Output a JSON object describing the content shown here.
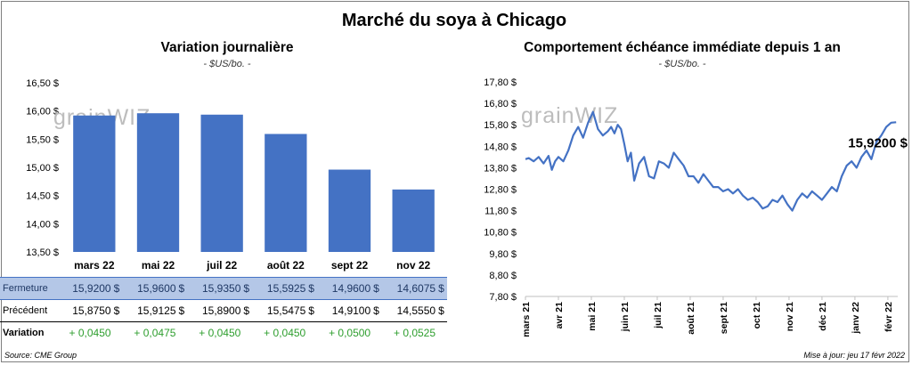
{
  "title": "Marché du soya à Chicago",
  "watermark": "grainWIZ",
  "source": "Source: CME Group",
  "updated": "Mise à jour: jeu 17 févr 2022",
  "chart_data": [
    {
      "type": "bar",
      "title": "Variation journalière",
      "subtitle": "- $US/bo. -",
      "categories": [
        "mars 22",
        "mai 22",
        "juil 22",
        "août 22",
        "sept 22",
        "nov 22"
      ],
      "values": [
        15.92,
        15.96,
        15.935,
        15.5925,
        14.96,
        14.6075
      ],
      "ylim": [
        13.5,
        16.5
      ],
      "yticks": [
        "13,50 $",
        "14,00 $",
        "14,50 $",
        "15,00 $",
        "15,50 $",
        "16,00 $",
        "16,50 $"
      ],
      "color": "#4472c4",
      "table": {
        "fermeture_label": "Fermeture",
        "fermeture": [
          "15,9200",
          "15,9600",
          "15,9350",
          "15,5925",
          "14,9600",
          "14,6075"
        ],
        "precedent_label": "Précédent",
        "precedent": [
          "15,8750",
          "15,9125",
          "15,8900",
          "15,5475",
          "14,9100",
          "14,5550"
        ],
        "variation_label": "Variation",
        "variation": [
          "+ 0,0450",
          "+ 0,0475",
          "+ 0,0450",
          "+ 0,0450",
          "+ 0,0500",
          "+ 0,0525"
        ],
        "currency": "$"
      }
    },
    {
      "type": "line",
      "title": "Comportement  échéance immédiate depuis 1 an",
      "subtitle": "- $US/bo. -",
      "x_labels": [
        "mars 21",
        "avr 21",
        "mai 21",
        "juin 21",
        "juil 21",
        "août 21",
        "sept 21",
        "oct 21",
        "nov 21",
        "déc 21",
        "janv 22",
        "févr 22"
      ],
      "ylim": [
        7.8,
        17.8
      ],
      "yticks": [
        "7,80 $",
        "8,80 $",
        "9,80 $",
        "10,80 $",
        "11,80 $",
        "12,80 $",
        "13,80 $",
        "14,80 $",
        "15,80 $",
        "16,80 $",
        "17,80 $"
      ],
      "last_label": "15,9200 $",
      "color": "#4472c4",
      "series": [
        {
          "x": [
            0,
            0.1,
            0.25,
            0.4,
            0.55,
            0.7,
            0.8,
            0.9,
            1.0,
            1.15,
            1.3,
            1.45,
            1.6,
            1.75,
            1.9,
            2.05,
            2.2,
            2.35,
            2.5,
            2.6,
            2.7,
            2.8,
            2.9,
            3.0,
            3.1,
            3.2,
            3.3,
            3.45,
            3.6,
            3.75,
            3.9,
            4.05,
            4.2,
            4.35,
            4.5,
            4.65,
            4.8,
            4.95,
            5.1,
            5.25,
            5.4,
            5.55,
            5.7,
            5.85,
            6.0,
            6.15,
            6.3,
            6.45,
            6.6,
            6.75,
            6.9,
            7.05,
            7.2,
            7.35,
            7.5,
            7.65,
            7.8,
            7.95,
            8.1,
            8.25,
            8.4,
            8.55,
            8.7,
            8.85,
            9.0,
            9.15,
            9.3,
            9.45,
            9.6,
            9.75,
            9.9,
            10.05,
            10.2,
            10.35,
            10.5,
            10.65,
            10.8,
            10.95,
            11.1,
            11.25
          ],
          "y": [
            14.2,
            14.25,
            14.1,
            14.3,
            14.0,
            14.35,
            13.7,
            14.1,
            14.3,
            14.1,
            14.6,
            15.3,
            15.7,
            15.2,
            15.9,
            16.4,
            15.6,
            15.3,
            15.5,
            15.7,
            15.4,
            15.8,
            15.6,
            14.9,
            14.1,
            14.5,
            13.2,
            14.0,
            14.3,
            13.4,
            13.3,
            14.1,
            14.0,
            13.8,
            14.5,
            14.2,
            13.9,
            13.4,
            13.4,
            13.1,
            13.5,
            13.2,
            12.9,
            12.9,
            12.7,
            12.8,
            12.6,
            12.8,
            12.5,
            12.3,
            12.4,
            12.2,
            11.9,
            12.0,
            12.3,
            12.2,
            12.5,
            12.1,
            11.8,
            12.3,
            12.6,
            12.4,
            12.7,
            12.5,
            12.3,
            12.6,
            12.9,
            12.7,
            13.4,
            13.9,
            14.1,
            13.8,
            14.3,
            14.6,
            14.2,
            15.0,
            15.3,
            15.7,
            15.9,
            15.92
          ]
        }
      ]
    }
  ]
}
